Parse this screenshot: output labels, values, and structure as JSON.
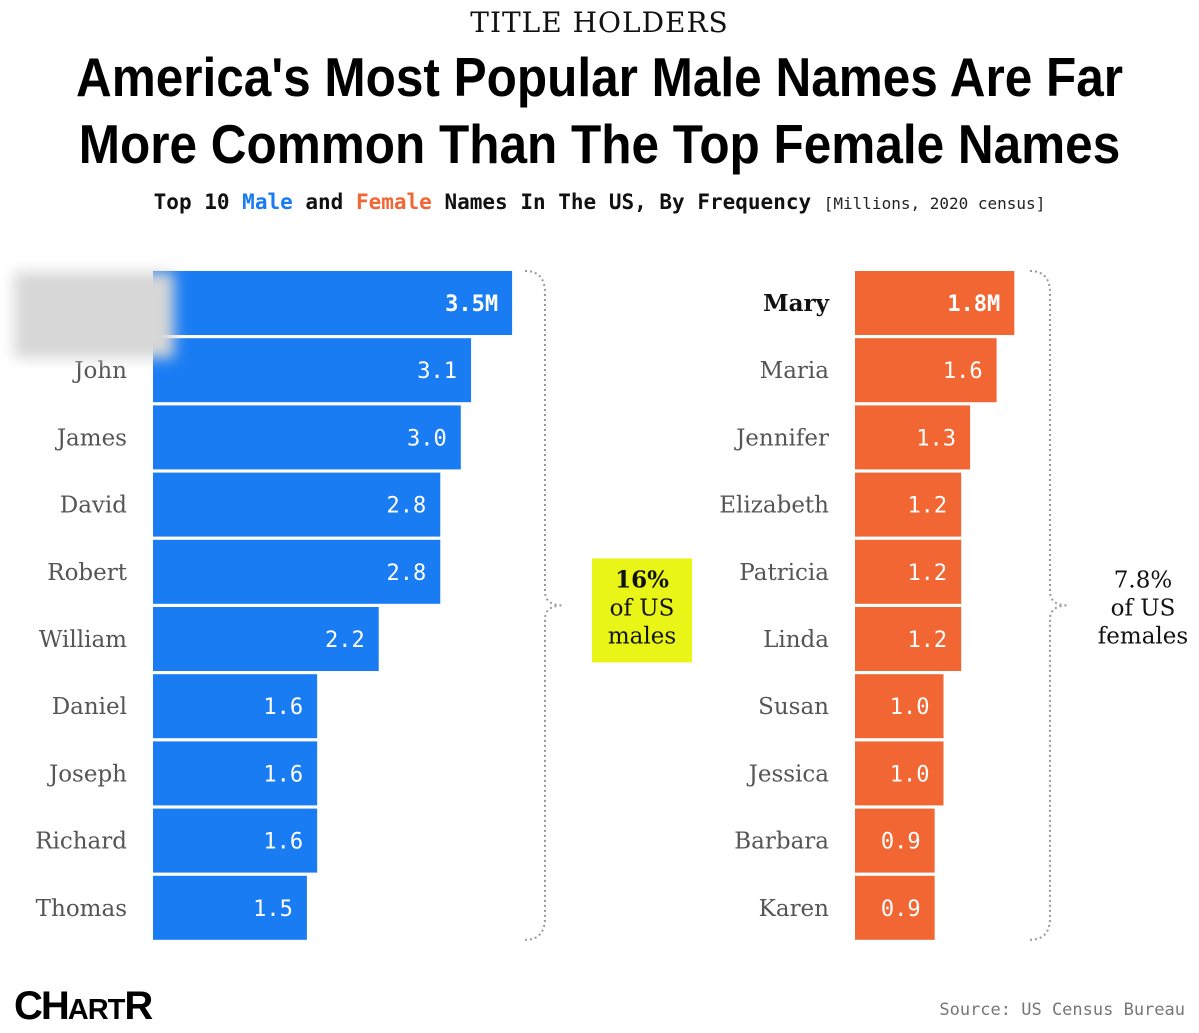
{
  "kicker": "TITLE HOLDERS",
  "headline_line1": "America's Most Popular Male Names Are Far",
  "headline_line2": "More Common Than The Top Female Names",
  "subtitle": {
    "part1": "Top 10 ",
    "male_word": "Male",
    "part2": " and ",
    "female_word": "Female",
    "part3": " Names In The US, By Frequency ",
    "unit": "[Millions, 2020 census]"
  },
  "colors": {
    "male": "#1a7cf3",
    "female": "#f26633",
    "highlight": "#e8f516"
  },
  "chart_data": [
    {
      "type": "bar",
      "orientation": "horizontal",
      "categories": [
        "",
        "John",
        "James",
        "David",
        "Robert",
        "William",
        "Daniel",
        "Joseph",
        "Richard",
        "Thomas"
      ],
      "values": [
        3.5,
        3.1,
        3.0,
        2.8,
        2.8,
        2.2,
        1.6,
        1.6,
        1.6,
        1.5
      ],
      "value_labels": [
        "3.5M",
        "3.1",
        "3.0",
        "2.8",
        "2.8",
        "2.2",
        "1.6",
        "1.6",
        "1.6",
        "1.5"
      ],
      "color": "#1a7cf3",
      "annotation": {
        "line1": "16%",
        "line2": "of US",
        "line3": "males"
      }
    },
    {
      "type": "bar",
      "orientation": "horizontal",
      "categories": [
        "Mary",
        "Maria",
        "Jennifer",
        "Elizabeth",
        "Patricia",
        "Linda",
        "Susan",
        "Jessica",
        "Barbara",
        "Karen"
      ],
      "values": [
        1.8,
        1.6,
        1.3,
        1.2,
        1.2,
        1.2,
        1.0,
        1.0,
        0.9,
        0.9
      ],
      "value_labels": [
        "1.8M",
        "1.6",
        "1.3",
        "1.2",
        "1.2",
        "1.2",
        "1.0",
        "1.0",
        "0.9",
        "0.9"
      ],
      "color": "#f26633",
      "annotation": {
        "line1": "7.8%",
        "line2": "of US",
        "line3": "females"
      }
    }
  ],
  "logo": {
    "big1": "CH",
    "small": "ART",
    "big2": "R"
  },
  "source": "Source: US Census Bureau"
}
